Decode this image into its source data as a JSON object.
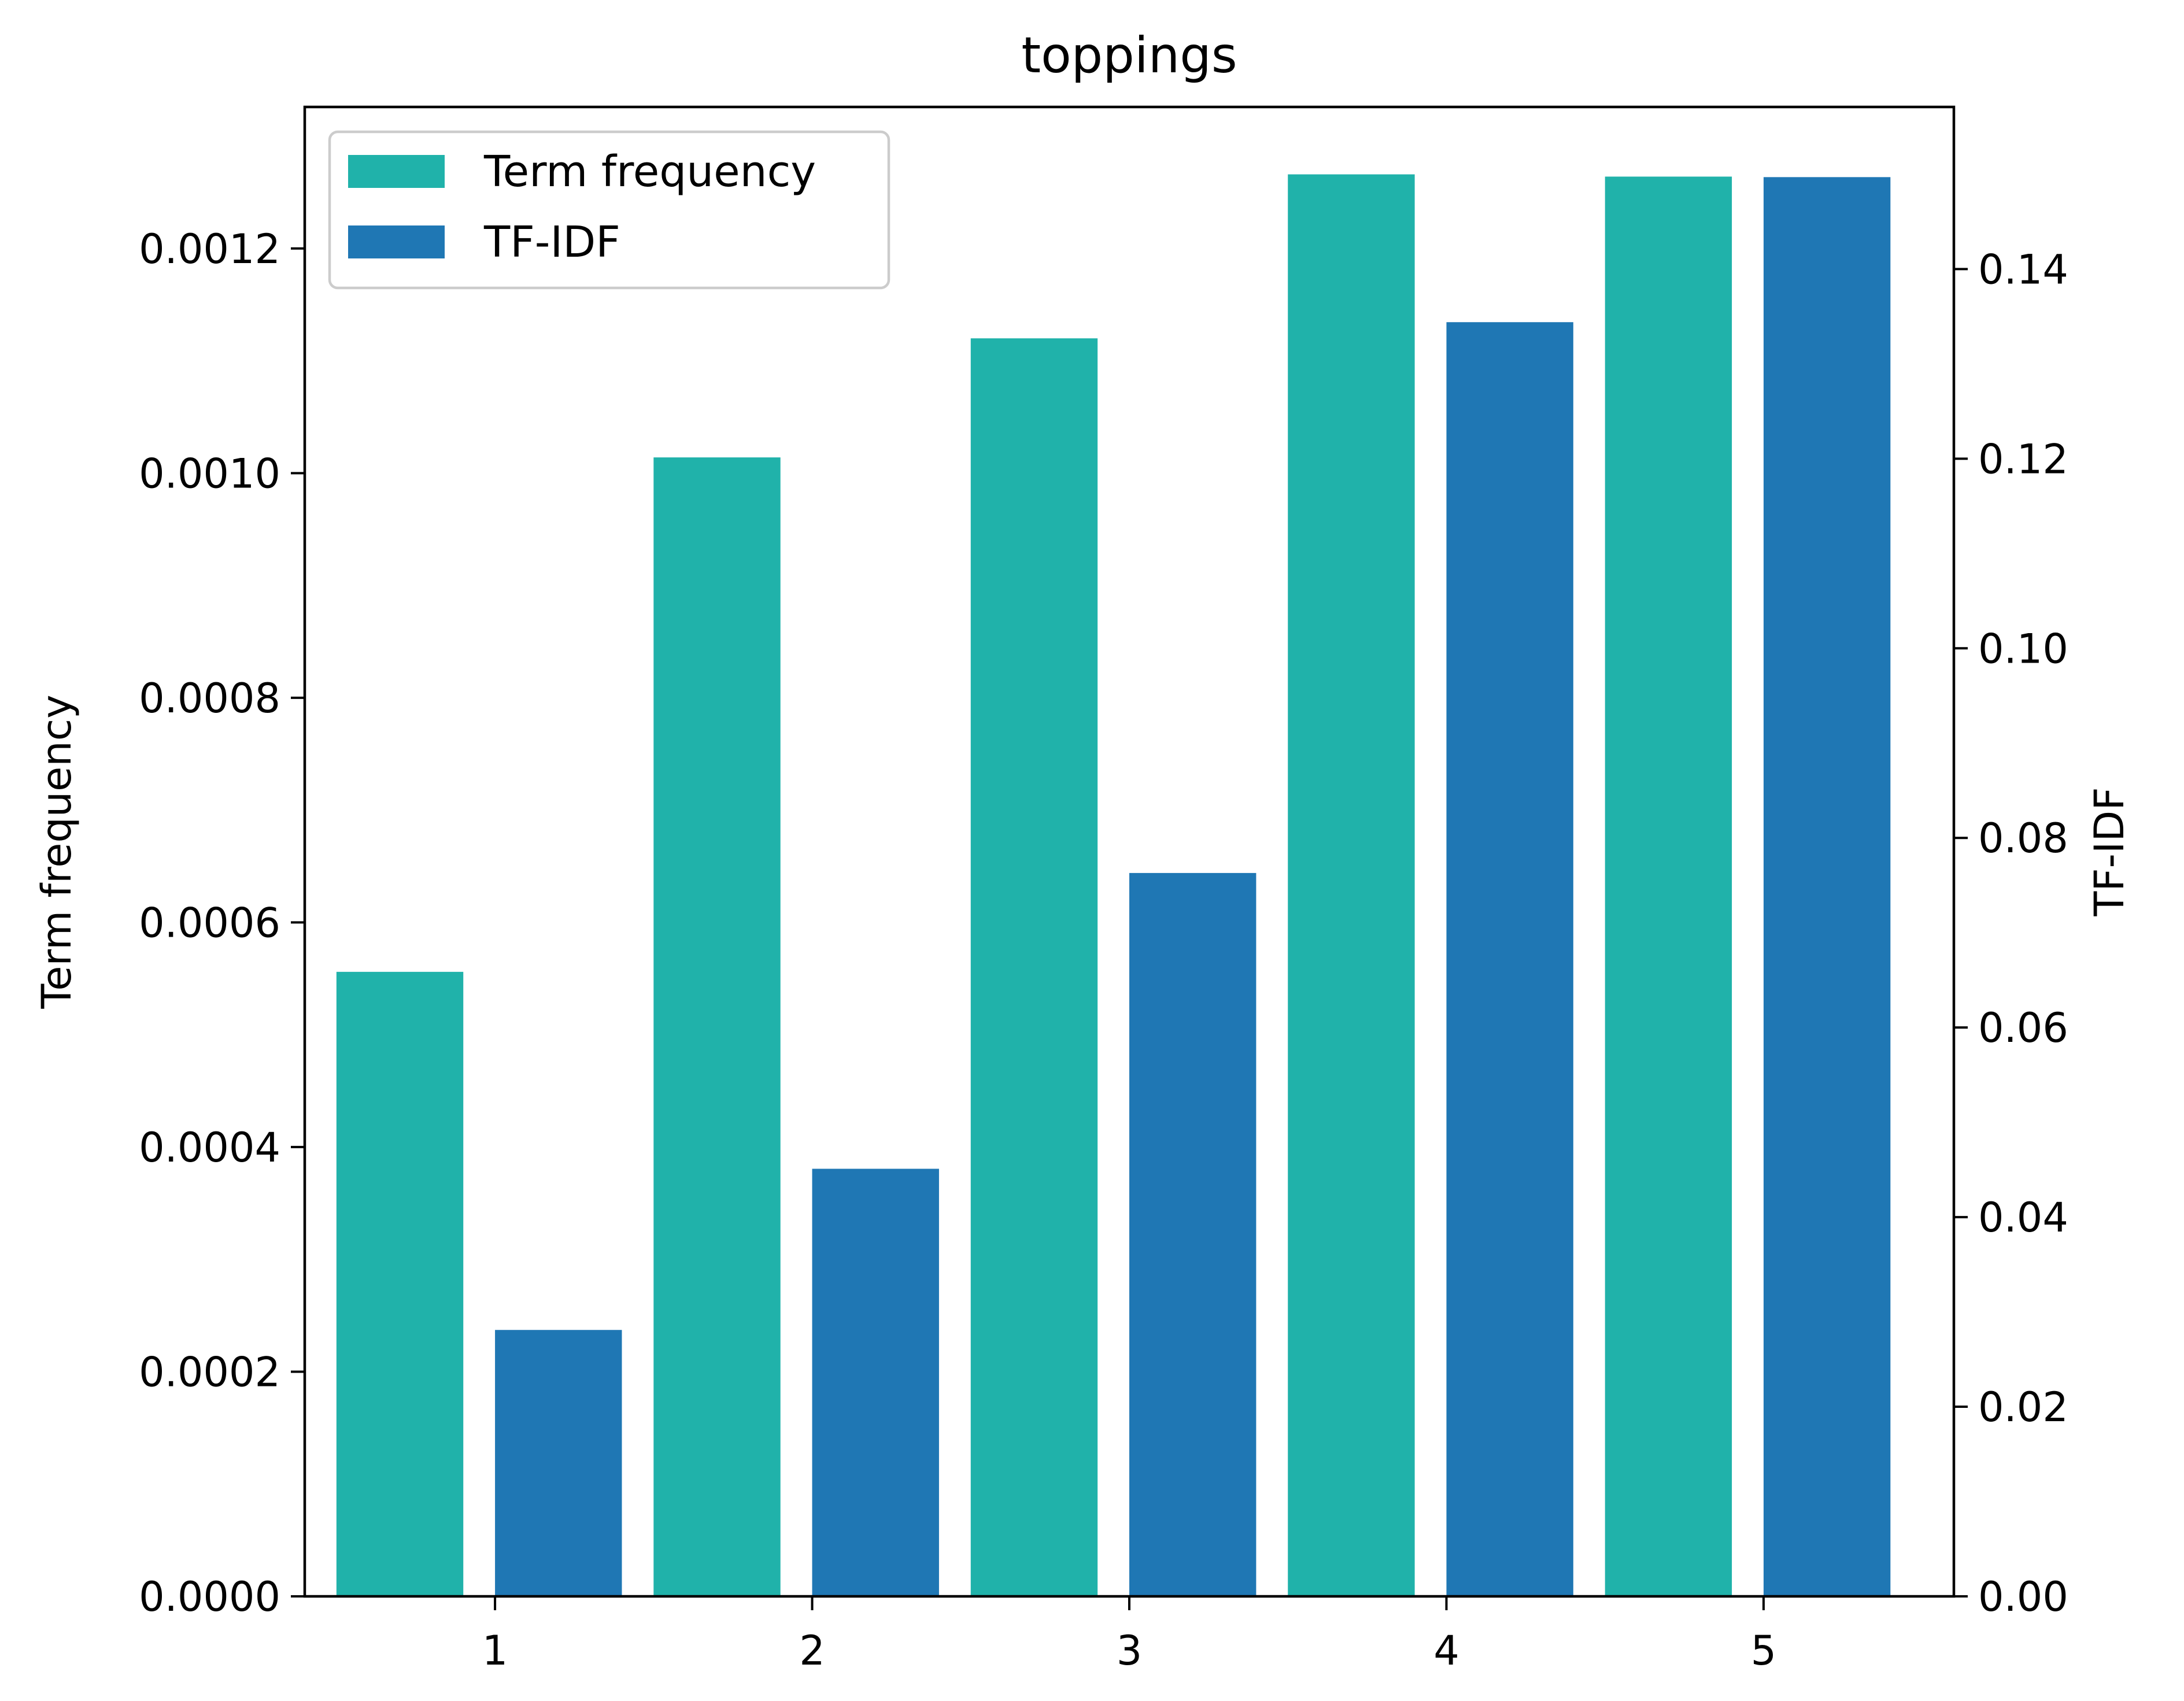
{
  "chart_data": {
    "type": "bar",
    "title": "toppings",
    "categories": [
      "1",
      "2",
      "3",
      "4",
      "5"
    ],
    "series": [
      {
        "name": "Term frequency",
        "axis": "left",
        "color": "#20b2aa",
        "values": [
          0.000556,
          0.001014,
          0.00112,
          0.001266,
          0.001264
        ]
      },
      {
        "name": "TF-IDF",
        "axis": "right",
        "color": "#1f77b4",
        "values": [
          0.0281,
          0.0451,
          0.0763,
          0.1344,
          0.1497
        ]
      }
    ],
    "y_left": {
      "label": "Term frequency",
      "lim": [
        0,
        0.001326
      ],
      "ticks": [
        0,
        0.0002,
        0.0004,
        0.0006,
        0.0008,
        0.001,
        0.0012
      ],
      "tick_labels": [
        "0.0000",
        "0.0002",
        "0.0004",
        "0.0006",
        "0.0008",
        "0.0010",
        "0.0012"
      ]
    },
    "y_right": {
      "label": "TF-IDF",
      "lim": [
        0,
        0.1571
      ],
      "ticks": [
        0,
        0.02,
        0.04,
        0.06,
        0.08,
        0.1,
        0.12,
        0.14
      ],
      "tick_labels": [
        "0.00",
        "0.02",
        "0.04",
        "0.06",
        "0.08",
        "0.10",
        "0.12",
        "0.14"
      ]
    },
    "x_ticks": [
      1,
      2,
      3,
      4,
      5
    ],
    "x_tick_labels": [
      "1",
      "2",
      "3",
      "4",
      "5"
    ],
    "grid": false,
    "legend_position": "top-left"
  }
}
